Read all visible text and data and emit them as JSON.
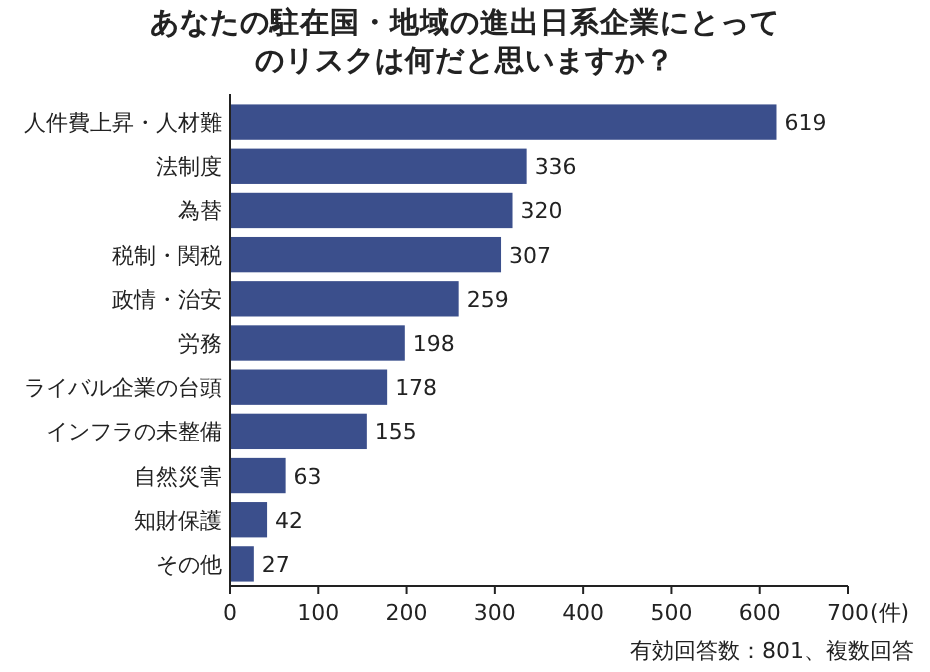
{
  "chart_data": {
    "type": "bar",
    "orientation": "horizontal",
    "title": "あなたの駐在国・地域の進出日系企業にとってのリスクは何だと思いますか？",
    "categories": [
      "人件費上昇・人材難",
      "法制度",
      "為替",
      "税制・関税",
      "政情・治安",
      "労務",
      "ライバル企業の台頭",
      "インフラの未整備",
      "自然災害",
      "知財保護",
      "その他"
    ],
    "values": [
      619,
      336,
      320,
      307,
      259,
      198,
      178,
      155,
      63,
      42,
      27
    ],
    "color": "#3b4f8c",
    "xlim": [
      0,
      700
    ],
    "xticks": [
      0,
      100,
      200,
      300,
      400,
      500,
      600,
      700
    ],
    "xlabel": "(件)",
    "data_labels": true,
    "grid": false,
    "annotations": [
      "有効回答数：801、複数回答"
    ]
  }
}
